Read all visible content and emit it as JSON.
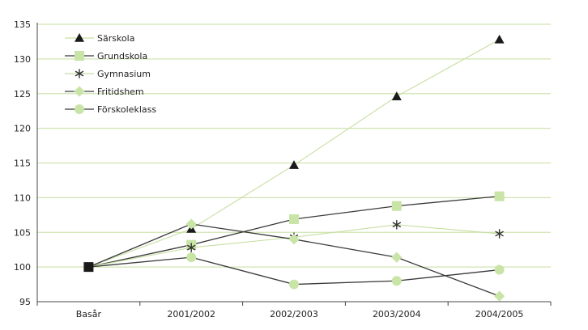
{
  "chart_data": {
    "type": "line",
    "categories": [
      "Basår",
      "2001/2002",
      "2002/2003",
      "2003/2004",
      "2004/2005"
    ],
    "ylim": [
      95,
      135
    ],
    "yticks": [
      95,
      100,
      105,
      110,
      115,
      120,
      125,
      130,
      135
    ],
    "grid": "horizontal",
    "legend_position": "top-left",
    "series": [
      {
        "name": "Särskola",
        "marker": "triangle",
        "line_color": "#c5dfa0",
        "marker_color": "#1a1a1a",
        "values": [
          100,
          105.5,
          114.7,
          124.6,
          132.8
        ]
      },
      {
        "name": "Grundskola",
        "marker": "square",
        "line_color": "#3a3a3a",
        "marker_color": "#c8e4a6",
        "values": [
          100,
          103.2,
          106.9,
          108.8,
          110.2
        ]
      },
      {
        "name": "Gymnasium",
        "marker": "star",
        "line_color": "#c5dfa0",
        "marker_color": "#333333",
        "values": [
          100,
          102.8,
          104.3,
          106.1,
          104.8
        ]
      },
      {
        "name": "Fritidshem",
        "marker": "diamond",
        "line_color": "#3a3a3a",
        "marker_color": "#c8e4a6",
        "values": [
          100,
          106.2,
          104.0,
          101.4,
          95.8
        ]
      },
      {
        "name": "Förskoleklass",
        "marker": "circle",
        "line_color": "#3a3a3a",
        "marker_color": "#c8e4a6",
        "values": [
          100,
          101.4,
          97.5,
          98.0,
          99.6
        ]
      }
    ]
  }
}
